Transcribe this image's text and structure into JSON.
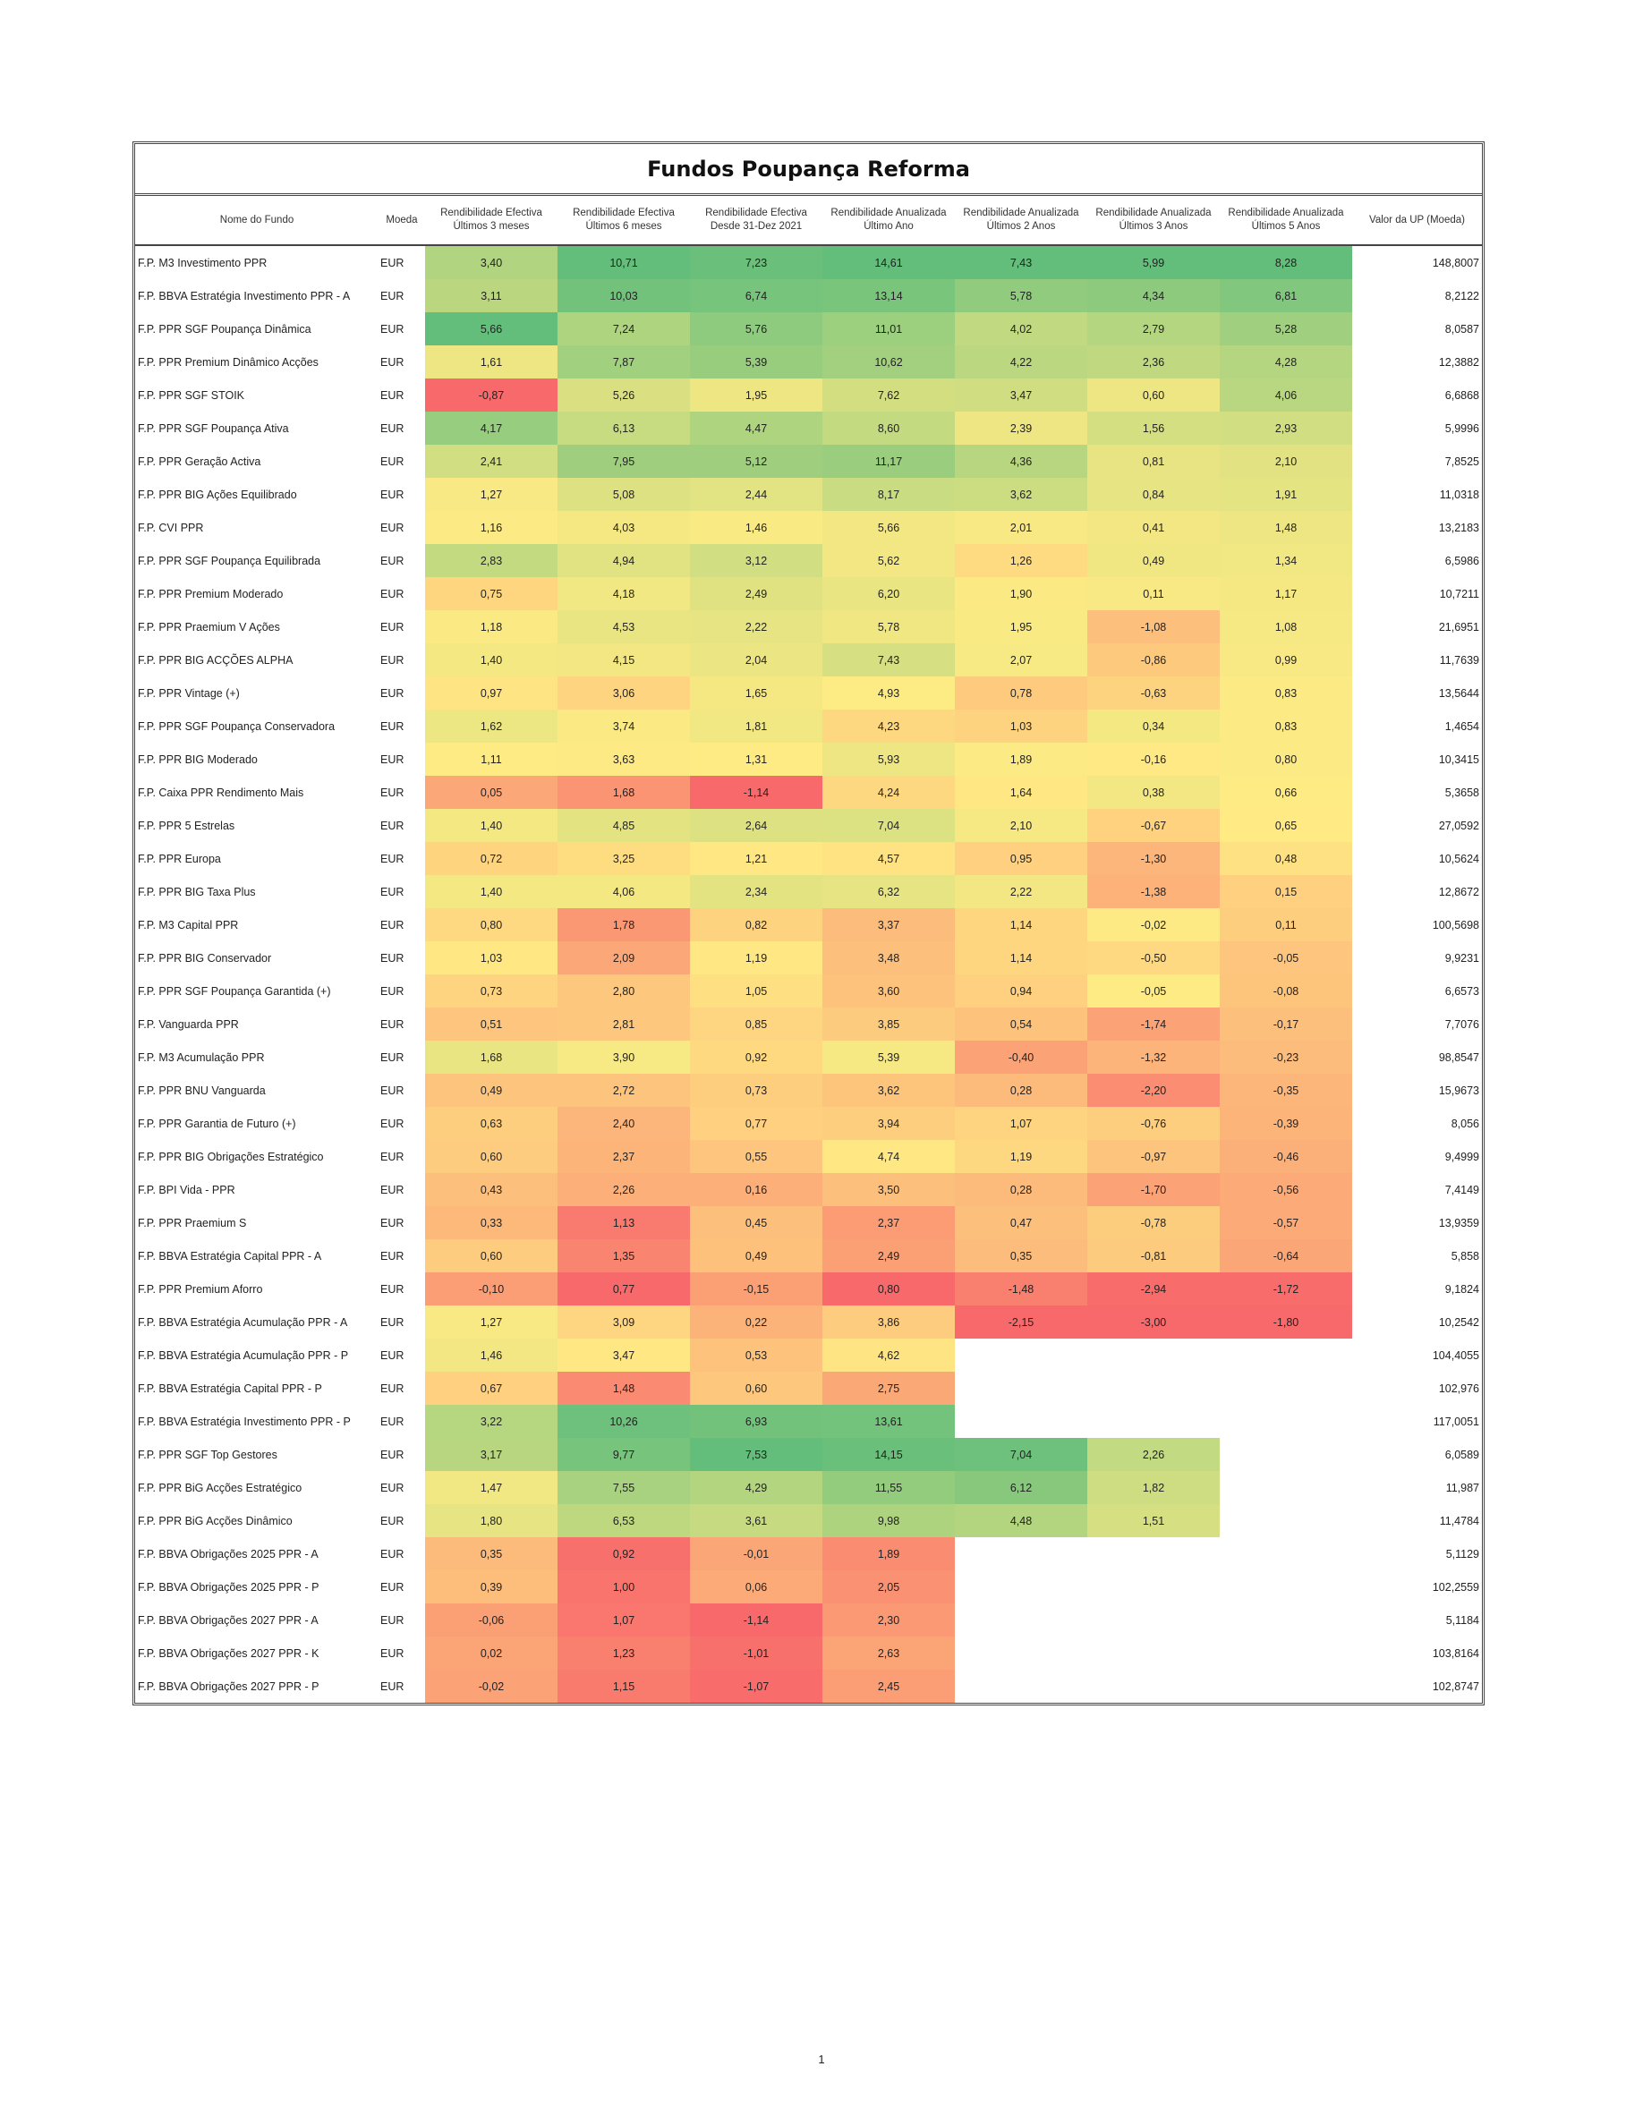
{
  "title": "Fundos Poupança Reforma",
  "headers": [
    "Nome do Fundo",
    "Moeda",
    "Rendibilidade Efectiva Últimos 3 meses",
    "Rendibilidade Efectiva Últimos 6 meses",
    "Rendibilidade Efectiva Desde 31-Dez 2021",
    "Rendibilidade Anualizada Último Ano",
    "Rendibilidade Anualizada Últimos 2 Anos",
    "Rendibilidade Anualizada Últimos 3 Anos",
    "Rendibilidade Anualizada Últimos 5 Anos",
    "Valor da UP (Moeda)"
  ],
  "rows": [
    [
      "F.P. M3 Investimento PPR",
      "EUR",
      "3,40",
      "10,71",
      "7,23",
      "14,61",
      "7,43",
      "5,99",
      "8,28",
      "148,8007"
    ],
    [
      "F.P. BBVA Estratégia Investimento PPR - A",
      "EUR",
      "3,11",
      "10,03",
      "6,74",
      "13,14",
      "5,78",
      "4,34",
      "6,81",
      "8,2122"
    ],
    [
      "F.P. PPR SGF Poupança Dinâmica",
      "EUR",
      "5,66",
      "7,24",
      "5,76",
      "11,01",
      "4,02",
      "2,79",
      "5,28",
      "8,0587"
    ],
    [
      "F.P. PPR Premium Dinâmico Acções",
      "EUR",
      "1,61",
      "7,87",
      "5,39",
      "10,62",
      "4,22",
      "2,36",
      "4,28",
      "12,3882"
    ],
    [
      "F.P. PPR SGF STOIK",
      "EUR",
      "-0,87",
      "5,26",
      "1,95",
      "7,62",
      "3,47",
      "0,60",
      "4,06",
      "6,6868"
    ],
    [
      "F.P. PPR SGF Poupança Ativa",
      "EUR",
      "4,17",
      "6,13",
      "4,47",
      "8,60",
      "2,39",
      "1,56",
      "2,93",
      "5,9996"
    ],
    [
      "F.P. PPR Geração Activa",
      "EUR",
      "2,41",
      "7,95",
      "5,12",
      "11,17",
      "4,36",
      "0,81",
      "2,10",
      "7,8525"
    ],
    [
      "F.P. PPR BIG Ações Equilibrado",
      "EUR",
      "1,27",
      "5,08",
      "2,44",
      "8,17",
      "3,62",
      "0,84",
      "1,91",
      "11,0318"
    ],
    [
      "F.P. CVI PPR",
      "EUR",
      "1,16",
      "4,03",
      "1,46",
      "5,66",
      "2,01",
      "0,41",
      "1,48",
      "13,2183"
    ],
    [
      "F.P. PPR SGF Poupança Equilibrada",
      "EUR",
      "2,83",
      "4,94",
      "3,12",
      "5,62",
      "1,26",
      "0,49",
      "1,34",
      "6,5986"
    ],
    [
      "F.P. PPR Premium Moderado",
      "EUR",
      "0,75",
      "4,18",
      "2,49",
      "6,20",
      "1,90",
      "0,11",
      "1,17",
      "10,7211"
    ],
    [
      "F.P. PPR Praemium V Ações",
      "EUR",
      "1,18",
      "4,53",
      "2,22",
      "5,78",
      "1,95",
      "-1,08",
      "1,08",
      "21,6951"
    ],
    [
      "F.P. PPR BIG ACÇÕES ALPHA",
      "EUR",
      "1,40",
      "4,15",
      "2,04",
      "7,43",
      "2,07",
      "-0,86",
      "0,99",
      "11,7639"
    ],
    [
      "F.P. PPR Vintage (+)",
      "EUR",
      "0,97",
      "3,06",
      "1,65",
      "4,93",
      "0,78",
      "-0,63",
      "0,83",
      "13,5644"
    ],
    [
      "F.P. PPR SGF Poupança Conservadora",
      "EUR",
      "1,62",
      "3,74",
      "1,81",
      "4,23",
      "1,03",
      "0,34",
      "0,83",
      "1,4654"
    ],
    [
      "F.P. PPR BIG Moderado",
      "EUR",
      "1,11",
      "3,63",
      "1,31",
      "5,93",
      "1,89",
      "-0,16",
      "0,80",
      "10,3415"
    ],
    [
      "F.P. Caixa PPR Rendimento Mais",
      "EUR",
      "0,05",
      "1,68",
      "-1,14",
      "4,24",
      "1,64",
      "0,38",
      "0,66",
      "5,3658"
    ],
    [
      "F.P. PPR 5 Estrelas",
      "EUR",
      "1,40",
      "4,85",
      "2,64",
      "7,04",
      "2,10",
      "-0,67",
      "0,65",
      "27,0592"
    ],
    [
      "F.P. PPR Europa",
      "EUR",
      "0,72",
      "3,25",
      "1,21",
      "4,57",
      "0,95",
      "-1,30",
      "0,48",
      "10,5624"
    ],
    [
      "F.P. PPR BIG Taxa Plus",
      "EUR",
      "1,40",
      "4,06",
      "2,34",
      "6,32",
      "2,22",
      "-1,38",
      "0,15",
      "12,8672"
    ],
    [
      "F.P. M3 Capital PPR",
      "EUR",
      "0,80",
      "1,78",
      "0,82",
      "3,37",
      "1,14",
      "-0,02",
      "0,11",
      "100,5698"
    ],
    [
      "F.P. PPR BIG Conservador",
      "EUR",
      "1,03",
      "2,09",
      "1,19",
      "3,48",
      "1,14",
      "-0,50",
      "-0,05",
      "9,9231"
    ],
    [
      "F.P. PPR SGF Poupança Garantida (+)",
      "EUR",
      "0,73",
      "2,80",
      "1,05",
      "3,60",
      "0,94",
      "-0,05",
      "-0,08",
      "6,6573"
    ],
    [
      "F.P. Vanguarda PPR",
      "EUR",
      "0,51",
      "2,81",
      "0,85",
      "3,85",
      "0,54",
      "-1,74",
      "-0,17",
      "7,7076"
    ],
    [
      "F.P. M3 Acumulação PPR",
      "EUR",
      "1,68",
      "3,90",
      "0,92",
      "5,39",
      "-0,40",
      "-1,32",
      "-0,23",
      "98,8547"
    ],
    [
      "F.P. PPR BNU Vanguarda",
      "EUR",
      "0,49",
      "2,72",
      "0,73",
      "3,62",
      "0,28",
      "-2,20",
      "-0,35",
      "15,9673"
    ],
    [
      "F.P. PPR Garantia de Futuro (+)",
      "EUR",
      "0,63",
      "2,40",
      "0,77",
      "3,94",
      "1,07",
      "-0,76",
      "-0,39",
      "8,056"
    ],
    [
      "F.P. PPR BIG Obrigações Estratégico",
      "EUR",
      "0,60",
      "2,37",
      "0,55",
      "4,74",
      "1,19",
      "-0,97",
      "-0,46",
      "9,4999"
    ],
    [
      "F.P. BPI Vida - PPR",
      "EUR",
      "0,43",
      "2,26",
      "0,16",
      "3,50",
      "0,28",
      "-1,70",
      "-0,56",
      "7,4149"
    ],
    [
      "F.P. PPR Praemium S",
      "EUR",
      "0,33",
      "1,13",
      "0,45",
      "2,37",
      "0,47",
      "-0,78",
      "-0,57",
      "13,9359"
    ],
    [
      "F.P. BBVA Estratégia Capital PPR - A",
      "EUR",
      "0,60",
      "1,35",
      "0,49",
      "2,49",
      "0,35",
      "-0,81",
      "-0,64",
      "5,858"
    ],
    [
      "F.P. PPR Premium Aforro",
      "EUR",
      "-0,10",
      "0,77",
      "-0,15",
      "0,80",
      "-1,48",
      "-2,94",
      "-1,72",
      "9,1824"
    ],
    [
      "F.P. BBVA Estratégia Acumulação PPR - A",
      "EUR",
      "1,27",
      "3,09",
      "0,22",
      "3,86",
      "-2,15",
      "-3,00",
      "-1,80",
      "10,2542"
    ],
    [
      "F.P. BBVA Estratégia Acumulação PPR - P",
      "EUR",
      "1,46",
      "3,47",
      "0,53",
      "4,62",
      "",
      "",
      "",
      "104,4055"
    ],
    [
      "F.P. BBVA Estratégia Capital PPR - P",
      "EUR",
      "0,67",
      "1,48",
      "0,60",
      "2,75",
      "",
      "",
      "",
      "102,976"
    ],
    [
      "F.P. BBVA Estratégia Investimento PPR - P",
      "EUR",
      "3,22",
      "10,26",
      "6,93",
      "13,61",
      "",
      "",
      "",
      "117,0051"
    ],
    [
      "F.P. PPR SGF Top Gestores",
      "EUR",
      "3,17",
      "9,77",
      "7,53",
      "14,15",
      "7,04",
      "2,26",
      "",
      "6,0589"
    ],
    [
      "F.P. PPR BiG Acções Estratégico",
      "EUR",
      "1,47",
      "7,55",
      "4,29",
      "11,55",
      "6,12",
      "1,82",
      "",
      "11,987"
    ],
    [
      "F.P. PPR BiG Acções Dinâmico",
      "EUR",
      "1,80",
      "6,53",
      "3,61",
      "9,98",
      "4,48",
      "1,51",
      "",
      "11,4784"
    ],
    [
      "F.P. BBVA Obrigações 2025 PPR - A",
      "EUR",
      "0,35",
      "0,92",
      "-0,01",
      "1,89",
      "",
      "",
      "",
      "5,1129"
    ],
    [
      "F.P. BBVA Obrigações 2025 PPR - P",
      "EUR",
      "0,39",
      "1,00",
      "0,06",
      "2,05",
      "",
      "",
      "",
      "102,2559"
    ],
    [
      "F.P. BBVA Obrigações 2027 PPR - A",
      "EUR",
      "-0,06",
      "1,07",
      "-1,14",
      "2,30",
      "",
      "",
      "",
      "5,1184"
    ],
    [
      "F.P. BBVA Obrigações 2027 PPR - K",
      "EUR",
      "0,02",
      "1,23",
      "-1,01",
      "2,63",
      "",
      "",
      "",
      "103,8164"
    ],
    [
      "F.P. BBVA Obrigações 2027 PPR - P",
      "EUR",
      "-0,02",
      "1,15",
      "-1,07",
      "2,45",
      "",
      "",
      "",
      "102,8747"
    ]
  ],
  "colors": {
    "scale_low": "#f8696b",
    "scale_mid": "#ffeb84",
    "scale_high": "#63be7b"
  },
  "page_number": "1"
}
